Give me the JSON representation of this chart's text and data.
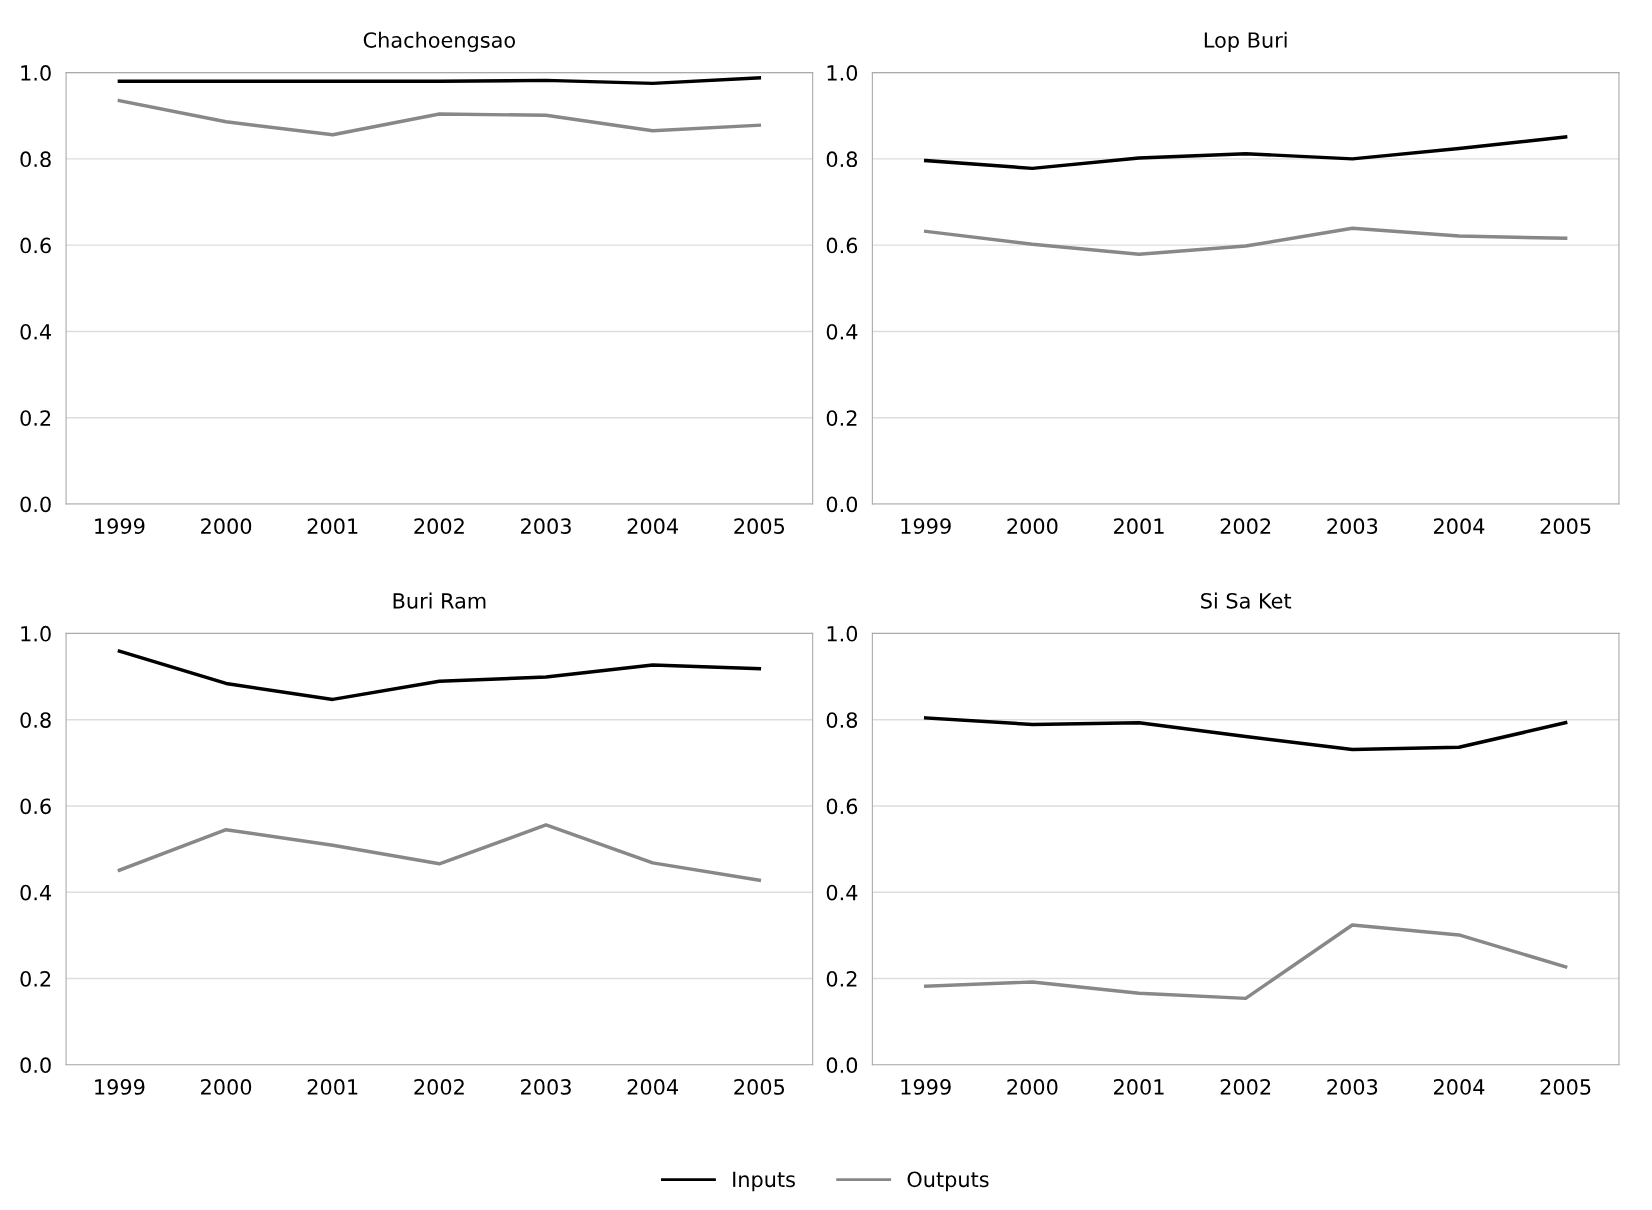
{
  "chart_data": [
    {
      "type": "line",
      "title": "Chachoengsao",
      "categories": [
        "1999",
        "2000",
        "2001",
        "2002",
        "2003",
        "2004",
        "2005"
      ],
      "ylim": [
        0,
        1
      ],
      "yticks": [
        {
          "value": 0,
          "label": "0.0"
        },
        {
          "value": 0.2,
          "label": "0.2"
        },
        {
          "value": 0.4,
          "label": "0.4"
        },
        {
          "value": 0.6,
          "label": "0.6"
        },
        {
          "value": 0.8,
          "label": "0.8"
        },
        {
          "value": 1.0,
          "label": "1.0"
        }
      ],
      "grid": "y",
      "legend": "bottom",
      "series": [
        {
          "name": "Inputs",
          "color": "#000000",
          "values": [
            0.98,
            0.98,
            0.98,
            0.98,
            0.982,
            0.975,
            0.988
          ]
        },
        {
          "name": "Outputs",
          "color": "#888888",
          "values": [
            0.935,
            0.886,
            0.856,
            0.904,
            0.901,
            0.865,
            0.878
          ]
        }
      ]
    },
    {
      "type": "line",
      "title": "Lop Buri",
      "categories": [
        "1999",
        "2000",
        "2001",
        "2002",
        "2003",
        "2004",
        "2005"
      ],
      "ylim": [
        0,
        1
      ],
      "yticks": [
        {
          "value": 0,
          "label": "0.0"
        },
        {
          "value": 0.2,
          "label": "0.2"
        },
        {
          "value": 0.4,
          "label": "0.4"
        },
        {
          "value": 0.6,
          "label": "0.6"
        },
        {
          "value": 0.8,
          "label": "0.8"
        },
        {
          "value": 1.0,
          "label": "1.0"
        }
      ],
      "grid": "y",
      "series": [
        {
          "color": "#000000",
          "values": [
            0.796,
            0.778,
            0.802,
            0.812,
            0.8,
            0.824,
            0.851
          ]
        },
        {
          "color": "#888888",
          "values": [
            0.632,
            0.602,
            0.579,
            0.598,
            0.639,
            0.621,
            0.616
          ]
        }
      ]
    },
    {
      "type": "line",
      "title": "Buri Ram",
      "categories": [
        "1999",
        "2000",
        "2001",
        "2002",
        "2003",
        "2004",
        "2005"
      ],
      "ylim": [
        0,
        1
      ],
      "yticks": [
        {
          "value": 0,
          "label": "0.0"
        },
        {
          "value": 0.2,
          "label": "0.2"
        },
        {
          "value": 0.4,
          "label": "0.4"
        },
        {
          "value": 0.6,
          "label": "0.6"
        },
        {
          "value": 0.8,
          "label": "0.8"
        },
        {
          "value": 1.0,
          "label": "1.0"
        }
      ],
      "grid": "y",
      "series": [
        {
          "color": "#000000",
          "values": [
            0.959,
            0.884,
            0.847,
            0.889,
            0.899,
            0.927,
            0.918
          ]
        },
        {
          "color": "#888888",
          "values": [
            0.451,
            0.545,
            0.509,
            0.466,
            0.556,
            0.468,
            0.428
          ]
        }
      ]
    },
    {
      "type": "line",
      "title": "Si Sa Ket",
      "categories": [
        "1999",
        "2000",
        "2001",
        "2002",
        "2003",
        "2004",
        "2005"
      ],
      "ylim": [
        0,
        1
      ],
      "yticks": [
        {
          "value": 0,
          "label": "0.0"
        },
        {
          "value": 0.2,
          "label": "0.2"
        },
        {
          "value": 0.4,
          "label": "0.4"
        },
        {
          "value": 0.6,
          "label": "0.6"
        },
        {
          "value": 0.8,
          "label": "0.8"
        },
        {
          "value": 1.0,
          "label": "1.0"
        }
      ],
      "grid": "y",
      "series": [
        {
          "color": "#000000",
          "values": [
            0.804,
            0.789,
            0.793,
            0.761,
            0.731,
            0.736,
            0.793
          ]
        },
        {
          "color": "#888888",
          "values": [
            0.182,
            0.192,
            0.166,
            0.154,
            0.324,
            0.301,
            0.227
          ]
        }
      ]
    }
  ]
}
